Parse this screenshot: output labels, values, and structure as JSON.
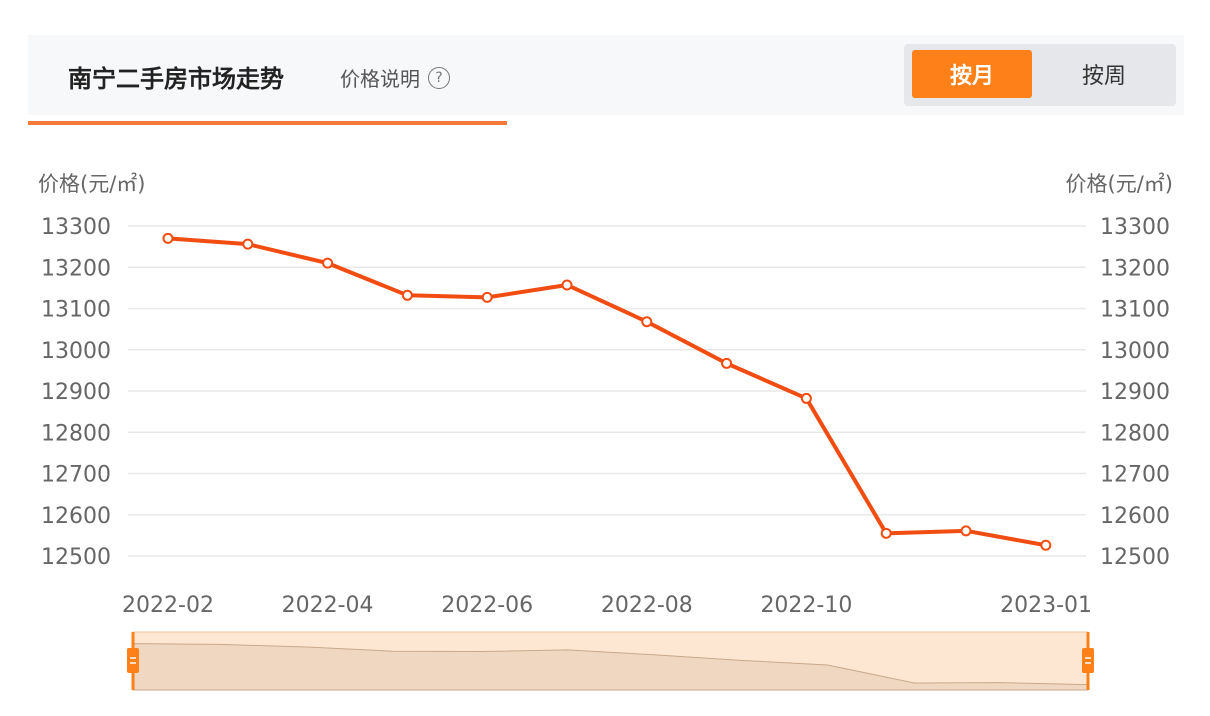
{
  "header": {
    "title": "南宁二手房市场走势",
    "price_note": "价格说明",
    "help_icon": "question-circle-icon",
    "tabs": [
      {
        "label": "按月",
        "active": true
      },
      {
        "label": "按周",
        "active": false
      }
    ]
  },
  "colors": {
    "accent": "#fe8019",
    "line": "#f14d12",
    "grid": "#e8e8e8",
    "axis_text": "#666666",
    "slider_fill": "#fde7d3",
    "slider_area": "#efd7c1",
    "slider_handle": "#fe8019"
  },
  "chart_data": {
    "type": "line",
    "ylabel_left": "价格(元/㎡)",
    "ylabel_right": "价格(元/㎡)",
    "ylim": [
      12500,
      13300
    ],
    "yticks": [
      13300,
      13200,
      13100,
      13000,
      12900,
      12800,
      12700,
      12600,
      12500
    ],
    "xtick_labels": [
      "2022-02",
      "2022-04",
      "2022-06",
      "2022-08",
      "2022-10",
      "2023-01"
    ],
    "x": [
      "2022-02",
      "2022-03",
      "2022-04",
      "2022-05",
      "2022-06",
      "2022-07",
      "2022-08",
      "2022-09",
      "2022-10",
      "2022-11",
      "2022-12",
      "2023-01"
    ],
    "series": [
      {
        "values": [
          13270,
          13256,
          13210,
          13132,
          13127,
          13157,
          13068,
          12967,
          12882,
          12555,
          12561,
          12526
        ]
      }
    ],
    "grid": true,
    "data_zoom_slider": true
  }
}
